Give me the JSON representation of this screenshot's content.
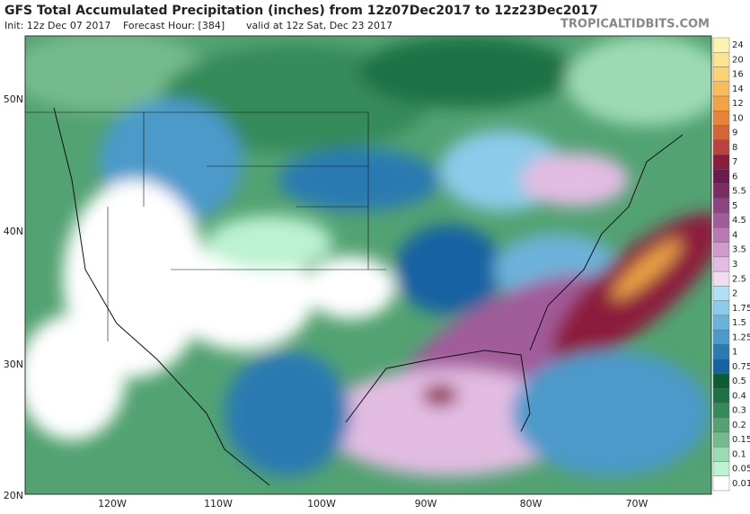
{
  "header": {
    "title": "GFS Total Accumulated Precipitation (inches) from 12z07Dec2017 to 12z23Dec2017",
    "init": "Init: 12z Dec 07 2017",
    "forecast_hour": "Forecast Hour: [384]",
    "valid": "valid at 12z Sat, Dec 23 2017",
    "watermark": "TROPICALTIDBITS.COM"
  },
  "map": {
    "lat_labels": [
      "50N",
      "40N",
      "30N",
      "20N"
    ],
    "lon_labels": [
      "120W",
      "110W",
      "100W",
      "90W",
      "80W",
      "70W"
    ]
  },
  "colorbar": [
    {
      "label": "24",
      "color": "#fef3b0"
    },
    {
      "label": "20",
      "color": "#fde48e"
    },
    {
      "label": "16",
      "color": "#fbd376"
    },
    {
      "label": "14",
      "color": "#f7bd5c"
    },
    {
      "label": "12",
      "color": "#f0a444"
    },
    {
      "label": "10",
      "color": "#e4853a"
    },
    {
      "label": "9",
      "color": "#d2653a"
    },
    {
      "label": "8",
      "color": "#b9443e"
    },
    {
      "label": "7",
      "color": "#8c1c3c"
    },
    {
      "label": "6",
      "color": "#6c1c4c"
    },
    {
      "label": "5.5",
      "color": "#7b2c62"
    },
    {
      "label": "5",
      "color": "#8c4482"
    },
    {
      "label": "4.5",
      "color": "#a15c9a"
    },
    {
      "label": "4",
      "color": "#b87ab2"
    },
    {
      "label": "3.5",
      "color": "#cf9bca"
    },
    {
      "label": "3",
      "color": "#e2bce2"
    },
    {
      "label": "2.5",
      "color": "#f1dcf1"
    },
    {
      "label": "2",
      "color": "#aee2f2"
    },
    {
      "label": "1.75",
      "color": "#8ccbea"
    },
    {
      "label": "1.5",
      "color": "#6cb2da"
    },
    {
      "label": "1.25",
      "color": "#4c9aca"
    },
    {
      "label": "1",
      "color": "#2c7ab2"
    },
    {
      "label": "0.75",
      "color": "#1462a2"
    },
    {
      "label": "0.5",
      "color": "#0c5c34"
    },
    {
      "label": "0.4",
      "color": "#1c7244"
    },
    {
      "label": "0.3",
      "color": "#348a5a"
    },
    {
      "label": "0.2",
      "color": "#52a272"
    },
    {
      "label": "0.15",
      "color": "#74ba8c"
    },
    {
      "label": "0.1",
      "color": "#9cdab2"
    },
    {
      "label": "0.05",
      "color": "#bcf2d2"
    },
    {
      "label": "0.01",
      "color": "#ffffff"
    }
  ]
}
